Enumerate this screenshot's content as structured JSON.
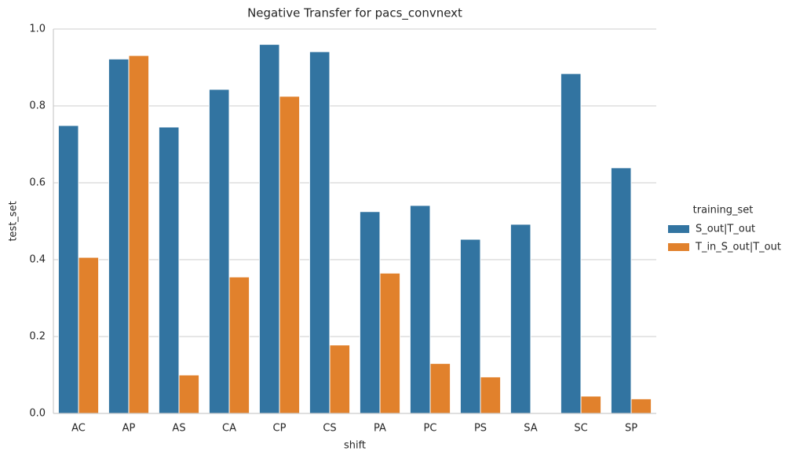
{
  "chart_data": {
    "type": "bar",
    "title": "Negative Transfer for pacs_convnext",
    "x_label": "shift",
    "y_label": "test_set",
    "legend_title": "training_set",
    "legend": "right-outside",
    "grid": true,
    "categories": [
      "AC",
      "AP",
      "AS",
      "CA",
      "CP",
      "CS",
      "PA",
      "PC",
      "PS",
      "SA",
      "SC",
      "SP"
    ],
    "series": [
      {
        "name": "S_out|T_out",
        "color": "#3274a1",
        "values": [
          0.749,
          0.922,
          0.745,
          0.843,
          0.96,
          0.941,
          0.525,
          0.541,
          0.453,
          0.492,
          0.884,
          0.639
        ]
      },
      {
        "name": "T_in_S_out|T_out",
        "color": "#e1812c",
        "values": [
          0.406,
          0.931,
          0.1,
          0.355,
          0.825,
          0.178,
          0.365,
          0.13,
          0.095,
          0,
          0.045,
          0.038
        ]
      }
    ],
    "ylim": [
      0,
      1.0
    ],
    "yticks": [
      {
        "value": 0,
        "label": "0.0"
      },
      {
        "value": 0.2,
        "label": "0.2"
      },
      {
        "value": 0.4,
        "label": "0.4"
      },
      {
        "value": 0.6,
        "label": "0.6"
      },
      {
        "value": 0.8,
        "label": "0.8"
      },
      {
        "value": 1.0,
        "label": "1.0"
      }
    ]
  }
}
